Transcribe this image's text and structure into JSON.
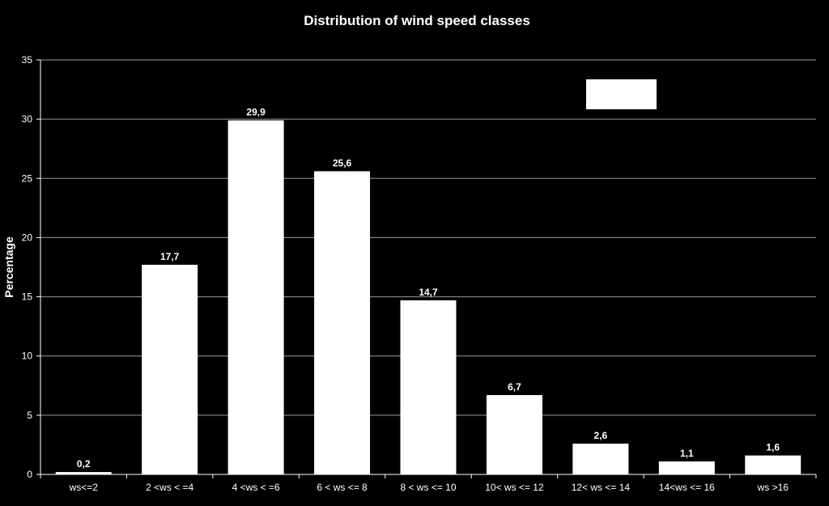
{
  "chart_data": {
    "type": "bar",
    "title": "Distribution of wind speed classes",
    "xlabel": "",
    "ylabel": "Percentage",
    "ylim": [
      0,
      35
    ],
    "yticks": [
      0,
      5,
      10,
      15,
      20,
      25,
      30,
      35
    ],
    "grid": true,
    "categories": [
      "ws<=2",
      "2 <ws < =4",
      "4 <ws < =6",
      "6 < ws <= 8",
      "8 < ws <= 10",
      "10< ws <= 12",
      "12< ws <= 14",
      "14<ws <= 16",
      "ws >16"
    ],
    "values": [
      0.2,
      17.7,
      29.9,
      25.6,
      14.7,
      6.7,
      2.6,
      1.1,
      1.6
    ],
    "data_labels": [
      "0,2",
      "17,7",
      "29,9",
      "25,6",
      "14,7",
      "6,7",
      "2,6",
      "1,1",
      "1,6"
    ],
    "legend": "top-right",
    "bar_color": "#ffffff",
    "background_color": "#000000",
    "grid_color": "#9a9a9a"
  }
}
